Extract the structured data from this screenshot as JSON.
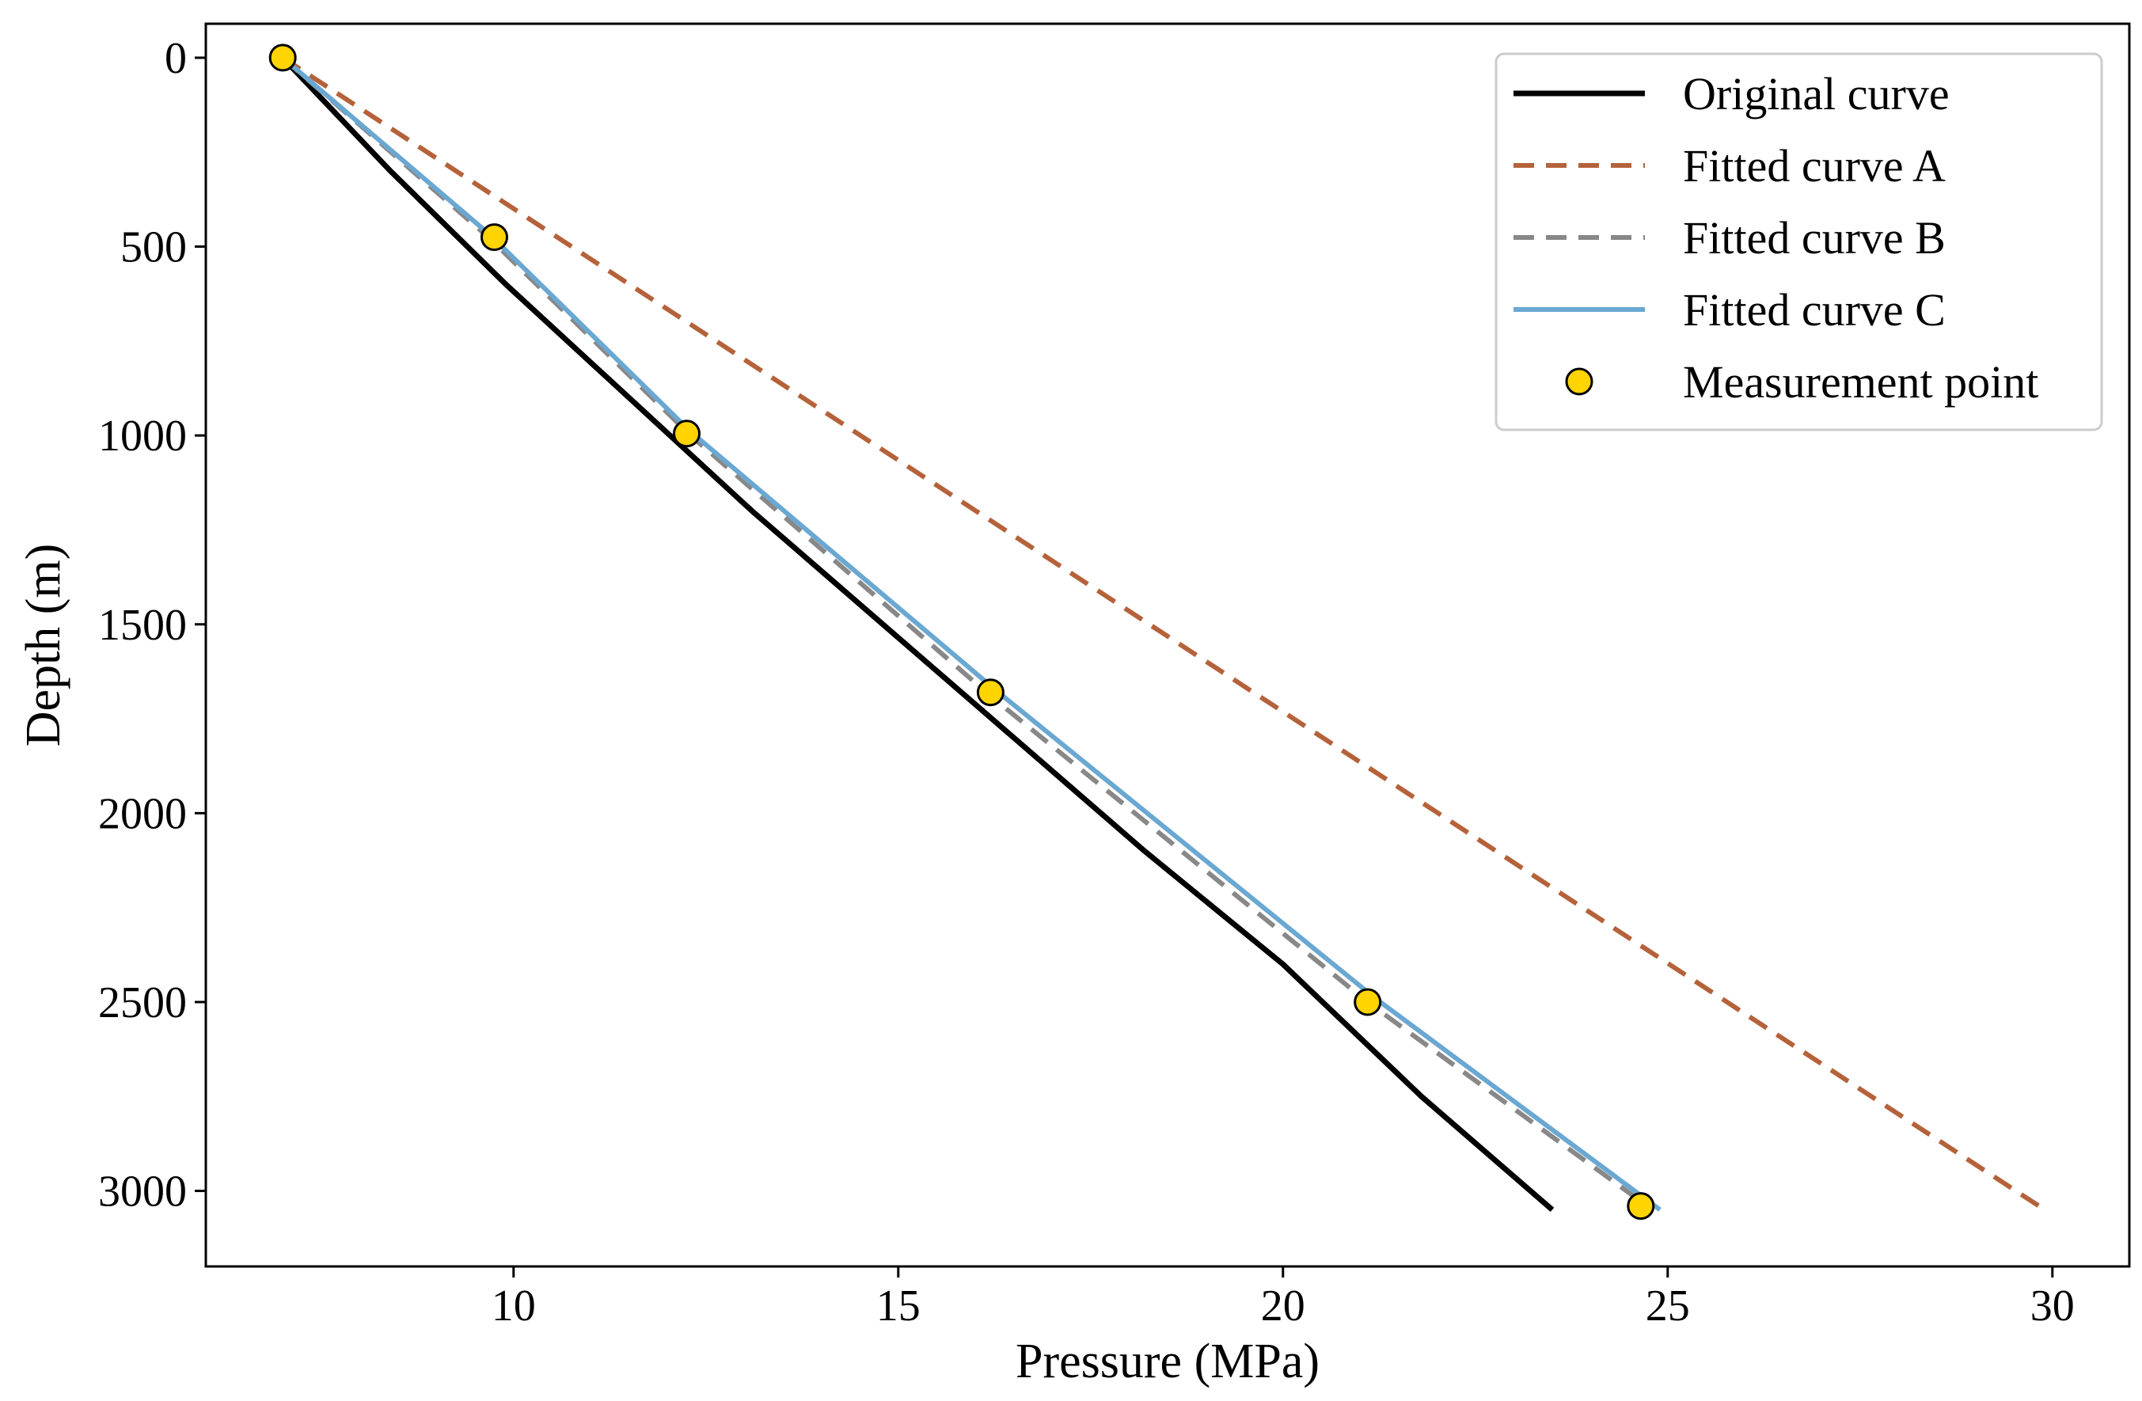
{
  "chart_data": {
    "type": "line",
    "title": "",
    "xlabel": "Pressure (MPa)",
    "ylabel": "Depth (m)",
    "xlim": [
      6.0,
      31.0
    ],
    "ylim": [
      3200,
      -90
    ],
    "y_inverted": true,
    "xticks": [
      10,
      15,
      20,
      25,
      30
    ],
    "yticks": [
      0,
      500,
      1000,
      1500,
      2000,
      2500,
      3000
    ],
    "grid": false,
    "legend_position": "top-right",
    "series": [
      {
        "name": "Original curve",
        "style": "solid",
        "color": "#000000",
        "points": [
          [
            7.0,
            0
          ],
          [
            8.4,
            300
          ],
          [
            9.9,
            600
          ],
          [
            11.5,
            900
          ],
          [
            13.1,
            1200
          ],
          [
            14.8,
            1500
          ],
          [
            16.5,
            1800
          ],
          [
            18.2,
            2100
          ],
          [
            20.0,
            2400
          ],
          [
            21.8,
            2750
          ],
          [
            23.5,
            3050
          ]
        ]
      },
      {
        "name": "Fitted curve A",
        "style": "dashed",
        "color": "#B5623A",
        "points": [
          [
            7.0,
            0
          ],
          [
            29.9,
            3050
          ]
        ]
      },
      {
        "name": "Fitted curve B",
        "style": "dashed",
        "color": "#888888",
        "points": [
          [
            7.0,
            0
          ],
          [
            9.7,
            480
          ],
          [
            12.3,
            1000
          ],
          [
            16.2,
            1690
          ],
          [
            21.1,
            2500
          ],
          [
            24.8,
            3050
          ]
        ]
      },
      {
        "name": "Fitted curve C",
        "style": "solid",
        "color": "#6AA8D2",
        "points": [
          [
            7.0,
            0
          ],
          [
            9.7,
            470
          ],
          [
            12.3,
            990
          ],
          [
            16.3,
            1680
          ],
          [
            21.2,
            2490
          ],
          [
            24.9,
            3050
          ]
        ]
      }
    ],
    "measurement_points": {
      "name": "Measurement point",
      "color": "#FFD400",
      "edge_color": "#000000",
      "x": [
        7.0,
        9.75,
        12.25,
        16.2,
        21.1,
        24.65
      ],
      "y": [
        0,
        475,
        995,
        1680,
        2500,
        3040
      ]
    }
  }
}
